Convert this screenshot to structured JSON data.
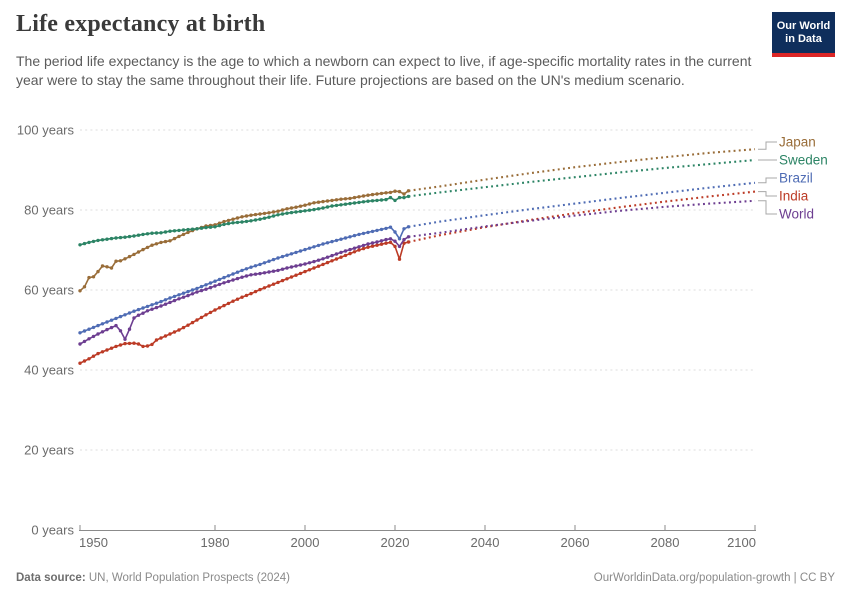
{
  "header": {
    "title": "Life expectancy at birth",
    "subtitle": "The period life expectancy is the age to which a newborn can expect to live, if age-specific mortality rates in the current year were to stay the same throughout their life. Future projections are based on the UN's medium scenario.",
    "logo": {
      "line1": "Our World",
      "line2": "in Data",
      "bg_color": "#0f2e5c",
      "stripe_color": "#dc2626"
    }
  },
  "footer": {
    "source_label": "Data source:",
    "source_text": " UN, World Population Prospects (2024)",
    "credit": "OurWorldinData.org/population-growth | CC BY"
  },
  "chart_data": {
    "type": "line",
    "title": "Life expectancy at birth",
    "xlabel": "",
    "ylabel": "",
    "xlim": [
      1950,
      2100
    ],
    "ylim": [
      0,
      100
    ],
    "x_ticks": [
      1950,
      1980,
      2000,
      2020,
      2040,
      2060,
      2080,
      2100
    ],
    "y_ticks": [
      0,
      20,
      40,
      60,
      80,
      100
    ],
    "y_tick_suffix": " years",
    "grid": "horizontal-dashed",
    "legend_position": "right-of-lines",
    "history_end_year": 2023,
    "projection_style": "dotted",
    "axis_color": "#8b8b8b",
    "grid_color": "#dddddd",
    "label_color": "#6b6b6b",
    "connector_color": "#a8a8a8",
    "series": [
      {
        "name": "Japan",
        "color": "#996d39",
        "history": [
          [
            1950,
            59.8
          ],
          [
            1951,
            60.8
          ],
          [
            1952,
            63.1
          ],
          [
            1953,
            63.3
          ],
          [
            1954,
            64.6
          ],
          [
            1955,
            66.0
          ],
          [
            1956,
            65.8
          ],
          [
            1957,
            65.5
          ],
          [
            1958,
            67.2
          ],
          [
            1959,
            67.3
          ],
          [
            1960,
            67.8
          ],
          [
            1962,
            68.9
          ],
          [
            1964,
            70.1
          ],
          [
            1966,
            71.2
          ],
          [
            1968,
            71.9
          ],
          [
            1970,
            72.3
          ],
          [
            1972,
            73.4
          ],
          [
            1974,
            74.4
          ],
          [
            1976,
            75.3
          ],
          [
            1978,
            76.0
          ],
          [
            1980,
            76.3
          ],
          [
            1982,
            77.1
          ],
          [
            1984,
            77.7
          ],
          [
            1986,
            78.3
          ],
          [
            1988,
            78.7
          ],
          [
            1990,
            79.0
          ],
          [
            1992,
            79.3
          ],
          [
            1994,
            79.7
          ],
          [
            1996,
            80.3
          ],
          [
            1998,
            80.7
          ],
          [
            2000,
            81.2
          ],
          [
            2002,
            81.8
          ],
          [
            2004,
            82.1
          ],
          [
            2006,
            82.4
          ],
          [
            2008,
            82.7
          ],
          [
            2010,
            82.9
          ],
          [
            2012,
            83.3
          ],
          [
            2014,
            83.7
          ],
          [
            2016,
            84.0
          ],
          [
            2018,
            84.3
          ],
          [
            2019,
            84.4
          ],
          [
            2020,
            84.7
          ],
          [
            2021,
            84.6
          ],
          [
            2022,
            84.0
          ],
          [
            2023,
            84.8
          ]
        ],
        "projection": [
          [
            2023,
            84.8
          ],
          [
            2030,
            85.9
          ],
          [
            2040,
            87.6
          ],
          [
            2050,
            89.2
          ],
          [
            2060,
            90.7
          ],
          [
            2070,
            92.0
          ],
          [
            2080,
            93.2
          ],
          [
            2090,
            94.3
          ],
          [
            2100,
            95.2
          ]
        ]
      },
      {
        "name": "Sweden",
        "color": "#2c8465",
        "history": [
          [
            1950,
            71.3
          ],
          [
            1952,
            71.9
          ],
          [
            1954,
            72.4
          ],
          [
            1956,
            72.7
          ],
          [
            1958,
            73.0
          ],
          [
            1960,
            73.2
          ],
          [
            1962,
            73.5
          ],
          [
            1964,
            73.9
          ],
          [
            1966,
            74.2
          ],
          [
            1968,
            74.3
          ],
          [
            1970,
            74.7
          ],
          [
            1972,
            74.9
          ],
          [
            1974,
            75.1
          ],
          [
            1976,
            75.3
          ],
          [
            1978,
            75.6
          ],
          [
            1980,
            75.8
          ],
          [
            1982,
            76.4
          ],
          [
            1984,
            76.8
          ],
          [
            1986,
            77.0
          ],
          [
            1988,
            77.3
          ],
          [
            1990,
            77.7
          ],
          [
            1992,
            78.2
          ],
          [
            1994,
            78.8
          ],
          [
            1996,
            79.2
          ],
          [
            1998,
            79.5
          ],
          [
            2000,
            79.8
          ],
          [
            2002,
            80.1
          ],
          [
            2004,
            80.5
          ],
          [
            2006,
            81.0
          ],
          [
            2008,
            81.3
          ],
          [
            2010,
            81.6
          ],
          [
            2012,
            81.9
          ],
          [
            2014,
            82.2
          ],
          [
            2016,
            82.4
          ],
          [
            2018,
            82.6
          ],
          [
            2019,
            83.1
          ],
          [
            2020,
            82.4
          ],
          [
            2021,
            83.1
          ],
          [
            2022,
            83.1
          ],
          [
            2023,
            83.4
          ]
        ],
        "projection": [
          [
            2023,
            83.4
          ],
          [
            2030,
            84.4
          ],
          [
            2040,
            85.7
          ],
          [
            2050,
            87.0
          ],
          [
            2060,
            88.2
          ],
          [
            2070,
            89.4
          ],
          [
            2080,
            90.5
          ],
          [
            2090,
            91.5
          ],
          [
            2100,
            92.5
          ]
        ]
      },
      {
        "name": "Brazil",
        "color": "#4f6cb4",
        "history": [
          [
            1950,
            49.3
          ],
          [
            1952,
            50.2
          ],
          [
            1954,
            51.1
          ],
          [
            1956,
            52.0
          ],
          [
            1958,
            52.9
          ],
          [
            1960,
            53.8
          ],
          [
            1962,
            54.7
          ],
          [
            1964,
            55.5
          ],
          [
            1966,
            56.3
          ],
          [
            1968,
            57.1
          ],
          [
            1970,
            58.0
          ],
          [
            1972,
            58.8
          ],
          [
            1974,
            59.6
          ],
          [
            1976,
            60.4
          ],
          [
            1978,
            61.3
          ],
          [
            1980,
            62.2
          ],
          [
            1982,
            63.1
          ],
          [
            1984,
            64.0
          ],
          [
            1986,
            64.9
          ],
          [
            1988,
            65.7
          ],
          [
            1990,
            66.4
          ],
          [
            1992,
            67.2
          ],
          [
            1994,
            68.0
          ],
          [
            1996,
            68.7
          ],
          [
            1998,
            69.4
          ],
          [
            2000,
            70.1
          ],
          [
            2002,
            70.8
          ],
          [
            2004,
            71.5
          ],
          [
            2006,
            72.1
          ],
          [
            2008,
            72.7
          ],
          [
            2010,
            73.3
          ],
          [
            2012,
            73.9
          ],
          [
            2014,
            74.4
          ],
          [
            2016,
            74.9
          ],
          [
            2018,
            75.4
          ],
          [
            2019,
            75.7
          ],
          [
            2020,
            74.5
          ],
          [
            2021,
            72.8
          ],
          [
            2022,
            75.3
          ],
          [
            2023,
            75.8
          ]
        ],
        "projection": [
          [
            2023,
            75.8
          ],
          [
            2030,
            77.1
          ],
          [
            2040,
            78.7
          ],
          [
            2050,
            80.2
          ],
          [
            2060,
            81.6
          ],
          [
            2070,
            83.0
          ],
          [
            2080,
            84.3
          ],
          [
            2090,
            85.6
          ],
          [
            2100,
            86.8
          ]
        ]
      },
      {
        "name": "India",
        "color": "#bc3b26",
        "history": [
          [
            1950,
            41.7
          ],
          [
            1952,
            42.8
          ],
          [
            1954,
            44.1
          ],
          [
            1956,
            45.0
          ],
          [
            1958,
            45.9
          ],
          [
            1960,
            46.6
          ],
          [
            1962,
            46.7
          ],
          [
            1963,
            46.5
          ],
          [
            1964,
            45.9
          ],
          [
            1965,
            46.0
          ],
          [
            1966,
            46.4
          ],
          [
            1967,
            47.5
          ],
          [
            1968,
            48.0
          ],
          [
            1970,
            49.0
          ],
          [
            1972,
            50.0
          ],
          [
            1974,
            51.2
          ],
          [
            1976,
            52.5
          ],
          [
            1978,
            53.8
          ],
          [
            1980,
            55.0
          ],
          [
            1982,
            56.1
          ],
          [
            1984,
            57.2
          ],
          [
            1986,
            58.2
          ],
          [
            1988,
            59.1
          ],
          [
            1990,
            60.1
          ],
          [
            1992,
            61.0
          ],
          [
            1994,
            61.9
          ],
          [
            1996,
            62.8
          ],
          [
            1998,
            63.7
          ],
          [
            2000,
            64.6
          ],
          [
            2002,
            65.5
          ],
          [
            2004,
            66.4
          ],
          [
            2006,
            67.3
          ],
          [
            2008,
            68.2
          ],
          [
            2010,
            69.1
          ],
          [
            2012,
            70.0
          ],
          [
            2014,
            70.7
          ],
          [
            2016,
            71.2
          ],
          [
            2018,
            71.7
          ],
          [
            2019,
            71.9
          ],
          [
            2020,
            70.9
          ],
          [
            2021,
            67.7
          ],
          [
            2022,
            71.7
          ],
          [
            2023,
            72.0
          ]
        ],
        "projection": [
          [
            2023,
            72.0
          ],
          [
            2030,
            73.7
          ],
          [
            2040,
            75.7
          ],
          [
            2050,
            77.5
          ],
          [
            2060,
            79.2
          ],
          [
            2070,
            80.7
          ],
          [
            2080,
            82.1
          ],
          [
            2090,
            83.4
          ],
          [
            2100,
            84.6
          ]
        ]
      },
      {
        "name": "World",
        "color": "#6d3e91",
        "history": [
          [
            1950,
            46.5
          ],
          [
            1952,
            47.8
          ],
          [
            1954,
            49.0
          ],
          [
            1956,
            50.1
          ],
          [
            1957,
            50.6
          ],
          [
            1958,
            51.1
          ],
          [
            1959,
            49.8
          ],
          [
            1960,
            47.7
          ],
          [
            1961,
            50.2
          ],
          [
            1962,
            53.0
          ],
          [
            1963,
            53.7
          ],
          [
            1964,
            54.2
          ],
          [
            1965,
            54.8
          ],
          [
            1966,
            55.2
          ],
          [
            1968,
            56.0
          ],
          [
            1970,
            56.9
          ],
          [
            1972,
            57.8
          ],
          [
            1974,
            58.6
          ],
          [
            1976,
            59.5
          ],
          [
            1978,
            60.2
          ],
          [
            1980,
            61.0
          ],
          [
            1982,
            61.8
          ],
          [
            1984,
            62.5
          ],
          [
            1986,
            63.2
          ],
          [
            1988,
            63.8
          ],
          [
            1990,
            64.1
          ],
          [
            1992,
            64.5
          ],
          [
            1994,
            64.9
          ],
          [
            1996,
            65.5
          ],
          [
            1998,
            66.0
          ],
          [
            2000,
            66.5
          ],
          [
            2002,
            67.1
          ],
          [
            2004,
            67.8
          ],
          [
            2006,
            68.6
          ],
          [
            2008,
            69.4
          ],
          [
            2010,
            70.1
          ],
          [
            2012,
            70.8
          ],
          [
            2014,
            71.5
          ],
          [
            2016,
            72.0
          ],
          [
            2018,
            72.6
          ],
          [
            2019,
            72.8
          ],
          [
            2020,
            72.2
          ],
          [
            2021,
            70.9
          ],
          [
            2022,
            72.6
          ],
          [
            2023,
            73.3
          ]
        ],
        "projection": [
          [
            2023,
            73.3
          ],
          [
            2030,
            74.3
          ],
          [
            2040,
            75.9
          ],
          [
            2050,
            77.3
          ],
          [
            2060,
            78.6
          ],
          [
            2070,
            79.8
          ],
          [
            2080,
            80.8
          ],
          [
            2090,
            81.6
          ],
          [
            2100,
            82.3
          ]
        ]
      }
    ]
  }
}
